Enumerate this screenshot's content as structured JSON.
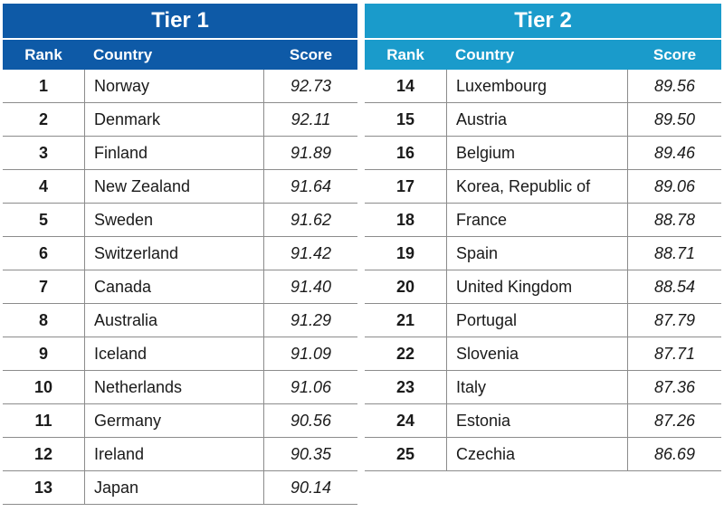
{
  "chart_data": {
    "type": "table",
    "tiers": [
      {
        "title": "Tier 1",
        "columns": [
          "Rank",
          "Country",
          "Score"
        ],
        "rows": [
          {
            "rank": "1",
            "country": "Norway",
            "score": "92.73"
          },
          {
            "rank": "2",
            "country": "Denmark",
            "score": "92.11"
          },
          {
            "rank": "3",
            "country": "Finland",
            "score": "91.89"
          },
          {
            "rank": "4",
            "country": "New Zealand",
            "score": "91.64"
          },
          {
            "rank": "5",
            "country": "Sweden",
            "score": "91.62"
          },
          {
            "rank": "6",
            "country": "Switzerland",
            "score": "91.42"
          },
          {
            "rank": "7",
            "country": "Canada",
            "score": "91.40"
          },
          {
            "rank": "8",
            "country": "Australia",
            "score": "91.29"
          },
          {
            "rank": "9",
            "country": "Iceland",
            "score": "91.09"
          },
          {
            "rank": "10",
            "country": "Netherlands",
            "score": "91.06"
          },
          {
            "rank": "11",
            "country": "Germany",
            "score": "90.56"
          },
          {
            "rank": "12",
            "country": "Ireland",
            "score": "90.35"
          },
          {
            "rank": "13",
            "country": "Japan",
            "score": "90.14"
          }
        ]
      },
      {
        "title": "Tier 2",
        "columns": [
          "Rank",
          "Country",
          "Score"
        ],
        "rows": [
          {
            "rank": "14",
            "country": "Luxembourg",
            "score": "89.56"
          },
          {
            "rank": "15",
            "country": "Austria",
            "score": "89.50"
          },
          {
            "rank": "16",
            "country": "Belgium",
            "score": "89.46"
          },
          {
            "rank": "17",
            "country": "Korea, Republic of",
            "score": "89.06"
          },
          {
            "rank": "18",
            "country": "France",
            "score": "88.78"
          },
          {
            "rank": "19",
            "country": "Spain",
            "score": "88.71"
          },
          {
            "rank": "20",
            "country": "United Kingdom",
            "score": "88.54"
          },
          {
            "rank": "21",
            "country": "Portugal",
            "score": "87.79"
          },
          {
            "rank": "22",
            "country": "Slovenia",
            "score": "87.71"
          },
          {
            "rank": "23",
            "country": "Italy",
            "score": "87.36"
          },
          {
            "rank": "24",
            "country": "Estonia",
            "score": "87.26"
          },
          {
            "rank": "25",
            "country": "Czechia",
            "score": "86.69"
          }
        ]
      }
    ]
  },
  "colors": {
    "tier1_header": "#0e5aa7",
    "tier2_header": "#1a9bcb",
    "grid_line": "#8c8c8c"
  }
}
